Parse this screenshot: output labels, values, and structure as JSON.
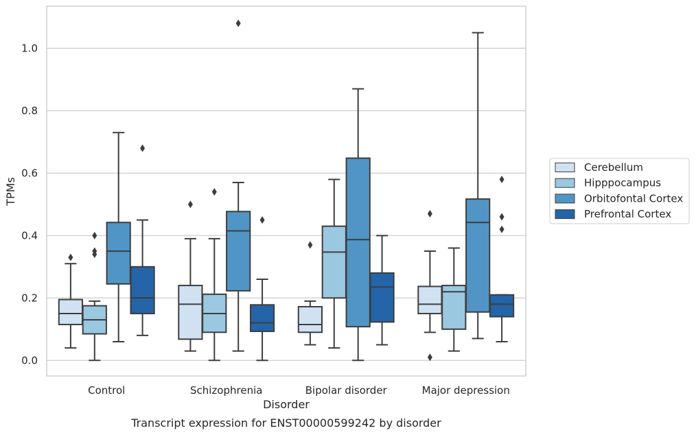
{
  "chart_data": {
    "type": "box",
    "title": "",
    "caption": "Transcript expression for ENST00000599242 by disorder",
    "xlabel": "Disorder",
    "ylabel": "TPMs",
    "ylim": [
      -0.05,
      1.135
    ],
    "yticks": [
      "0.0",
      "0.2",
      "0.4",
      "0.6",
      "0.8",
      "1.0"
    ],
    "ytick_values": [
      0.0,
      0.2,
      0.4,
      0.6,
      0.8,
      1.0
    ],
    "grid": "horizontal",
    "legend_position": "right",
    "categories": [
      "Control",
      "Schizophrenia",
      "Bipolar disorder",
      "Major depression"
    ],
    "series": [
      {
        "name": "Cerebellum",
        "color": "#d0e1f2",
        "boxes": [
          {
            "whislo": 0.04,
            "q1": 0.115,
            "med": 0.15,
            "q3": 0.195,
            "whishi": 0.31,
            "fliers": [
              0.33
            ]
          },
          {
            "whislo": 0.03,
            "q1": 0.068,
            "med": 0.18,
            "q3": 0.24,
            "whishi": 0.39,
            "fliers": [
              0.5
            ]
          },
          {
            "whislo": 0.05,
            "q1": 0.09,
            "med": 0.115,
            "q3": 0.172,
            "whishi": 0.19,
            "fliers": [
              0.37
            ]
          },
          {
            "whislo": 0.09,
            "q1": 0.15,
            "med": 0.18,
            "q3": 0.237,
            "whishi": 0.35,
            "fliers": [
              0.47,
              0.01
            ]
          }
        ]
      },
      {
        "name": "Hipppocampus",
        "color": "#9ac8e0",
        "boxes": [
          {
            "whislo": 0.0,
            "q1": 0.085,
            "med": 0.13,
            "q3": 0.175,
            "whishi": 0.19,
            "fliers": [
              0.34,
              0.35,
              0.4
            ]
          },
          {
            "whislo": 0.0,
            "q1": 0.09,
            "med": 0.15,
            "q3": 0.212,
            "whishi": 0.39,
            "fliers": [
              0.54
            ]
          },
          {
            "whislo": 0.04,
            "q1": 0.2,
            "med": 0.347,
            "q3": 0.43,
            "whishi": 0.58,
            "fliers": []
          },
          {
            "whislo": 0.03,
            "q1": 0.1,
            "med": 0.22,
            "q3": 0.24,
            "whishi": 0.36,
            "fliers": []
          }
        ]
      },
      {
        "name": "Orbitofontal Cortex",
        "color": "#5195c6",
        "boxes": [
          {
            "whislo": 0.06,
            "q1": 0.245,
            "med": 0.35,
            "q3": 0.442,
            "whishi": 0.73,
            "fliers": []
          },
          {
            "whislo": 0.03,
            "q1": 0.223,
            "med": 0.415,
            "q3": 0.477,
            "whishi": 0.57,
            "fliers": [
              1.08
            ]
          },
          {
            "whislo": 0.0,
            "q1": 0.108,
            "med": 0.387,
            "q3": 0.648,
            "whishi": 0.87,
            "fliers": []
          },
          {
            "whislo": 0.07,
            "q1": 0.155,
            "med": 0.442,
            "q3": 0.517,
            "whishi": 1.05,
            "fliers": []
          }
        ]
      },
      {
        "name": "Prefrontal Cortex",
        "color": "#2464a8",
        "boxes": [
          {
            "whislo": 0.08,
            "q1": 0.15,
            "med": 0.2,
            "q3": 0.3,
            "whishi": 0.45,
            "fliers": [
              0.68
            ]
          },
          {
            "whislo": 0.0,
            "q1": 0.093,
            "med": 0.12,
            "q3": 0.178,
            "whishi": 0.26,
            "fliers": [
              0.45
            ]
          },
          {
            "whislo": 0.05,
            "q1": 0.123,
            "med": 0.235,
            "q3": 0.28,
            "whishi": 0.4,
            "fliers": []
          },
          {
            "whislo": 0.06,
            "q1": 0.14,
            "med": 0.18,
            "q3": 0.21,
            "whishi": 0.21,
            "fliers": [
              0.42,
              0.46,
              0.58
            ]
          }
        ]
      }
    ]
  }
}
